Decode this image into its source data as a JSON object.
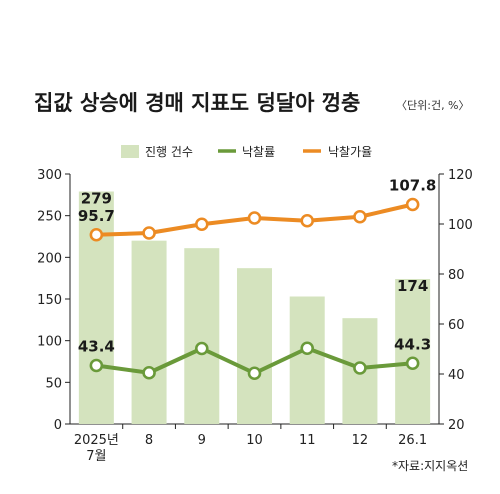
{
  "chart_data": {
    "type": "bar-line-combo",
    "title": "집값 상승에 경매 지표도 덩달아 껑충",
    "unit_note": "〈단위:건, %〉",
    "source": "*자료:지지옥션",
    "categories": [
      "2025년\n7월",
      "8",
      "9",
      "10",
      "11",
      "12",
      "26.1"
    ],
    "series": [
      {
        "name": "진행 건수",
        "type": "bar",
        "axis": "left",
        "color": "#d4e3be",
        "values": [
          279,
          220,
          211,
          187,
          153,
          127,
          174
        ]
      },
      {
        "name": "낙찰률",
        "type": "line",
        "axis": "right",
        "color": "#6a9a3a",
        "values": [
          43.4,
          40.5,
          50.2,
          40.3,
          50.3,
          42.4,
          44.3
        ]
      },
      {
        "name": "낙찰가율",
        "type": "line",
        "axis": "right",
        "color": "#ec8b23",
        "values": [
          95.7,
          96.4,
          99.9,
          102.4,
          101.3,
          102.9,
          107.8
        ]
      }
    ],
    "data_labels": {
      "bars": [
        {
          "index": 0,
          "text": "279"
        },
        {
          "index": 6,
          "text": "174"
        }
      ],
      "lines": [
        {
          "series": 2,
          "index": 0,
          "text": "95.7"
        },
        {
          "series": 2,
          "index": 6,
          "text": "107.8"
        },
        {
          "series": 1,
          "index": 0,
          "text": "43.4"
        },
        {
          "series": 1,
          "index": 6,
          "text": "44.3"
        }
      ]
    },
    "left_axis": {
      "min": 0,
      "max": 300,
      "ticks": [
        0,
        50,
        100,
        150,
        200,
        250,
        300
      ]
    },
    "right_axis": {
      "min": 20,
      "max": 120,
      "ticks": [
        20,
        40,
        60,
        80,
        100,
        120
      ]
    },
    "grid": false,
    "legend_position": "top"
  }
}
